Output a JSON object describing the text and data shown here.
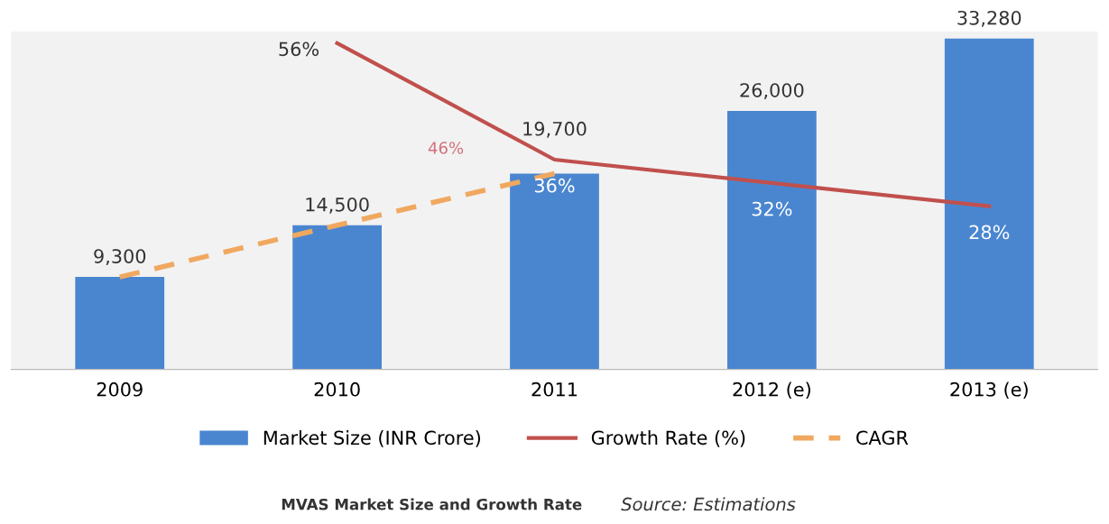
{
  "chart_data": {
    "type": "bar",
    "title": "MVAS Market Size and Growth Rate",
    "categories": [
      "2009",
      "2010",
      "2011",
      "2012 (e)",
      "2013 (e)"
    ],
    "series": [
      {
        "name": "Market Size (INR Crore)",
        "color": "#4a86d0",
        "values": [
          9300,
          14500,
          19700,
          26000,
          33280
        ],
        "value_labels": [
          "9,300",
          "14,500",
          "19,700",
          "26,000",
          "33,280"
        ]
      },
      {
        "name": "Growth Rate (%)",
        "type": "line",
        "axis": "y2",
        "color": "#c0504d",
        "values": [
          null,
          56,
          36,
          32,
          28
        ],
        "value_labels": [
          null,
          "56%",
          "36%",
          "32%",
          "28%"
        ]
      },
      {
        "name": "CAGR",
        "type": "line",
        "line_style": "dashed",
        "color": "#f0a860",
        "values": [
          9300,
          14500,
          19700,
          null,
          null
        ]
      }
    ],
    "ylim": [
      0,
      34000
    ],
    "y2lim": [
      0,
      58
    ],
    "tick_labels": "x",
    "grid": false,
    "legend": "bottom",
    "annotations": [
      "46%",
      "Source: Estimations"
    ]
  }
}
